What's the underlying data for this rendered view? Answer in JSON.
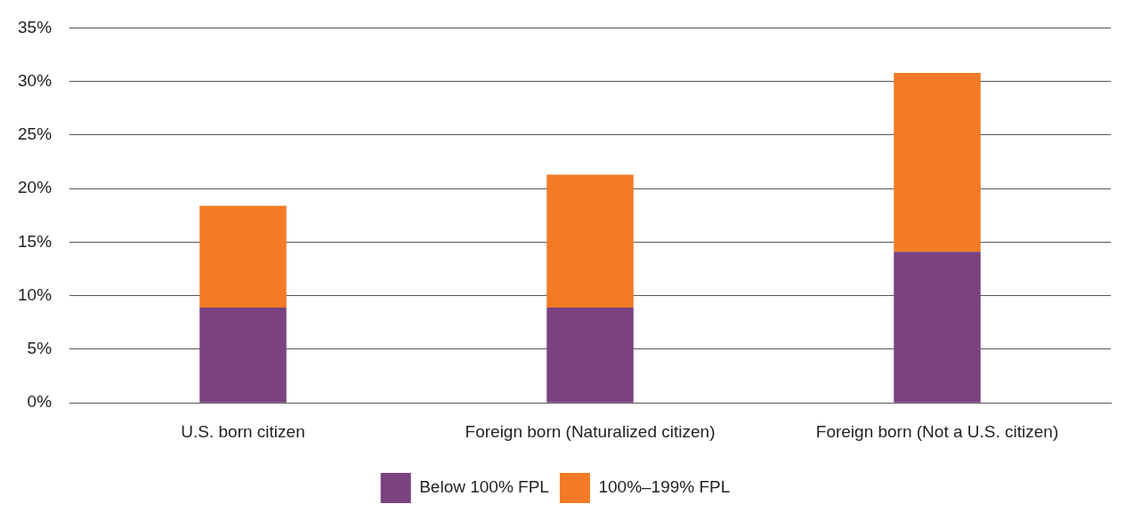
{
  "chart_data": {
    "type": "bar",
    "stacked": true,
    "categories": [
      "U.S. born citizen",
      "Foreign born (Naturalized citizen)",
      "Foreign born (Not a U.S. citizen)"
    ],
    "series": [
      {
        "name": "Below 100% FPL",
        "color": "#7b4281",
        "values": [
          8.9,
          8.9,
          14.1
        ]
      },
      {
        "name": "100%–199% FPL",
        "color": "#f47a25",
        "values": [
          9.5,
          12.4,
          16.7
        ]
      }
    ],
    "ylim": [
      0,
      35
    ],
    "yticks": [
      {
        "value": 0,
        "label": "0%"
      },
      {
        "value": 5,
        "label": "5%"
      },
      {
        "value": 10,
        "label": "10%"
      },
      {
        "value": 15,
        "label": "15%"
      },
      {
        "value": 20,
        "label": "20%"
      },
      {
        "value": 25,
        "label": "25%"
      },
      {
        "value": 30,
        "label": "30%"
      },
      {
        "value": 35,
        "label": "35%"
      }
    ],
    "grid": "y",
    "legend": "bottom"
  }
}
